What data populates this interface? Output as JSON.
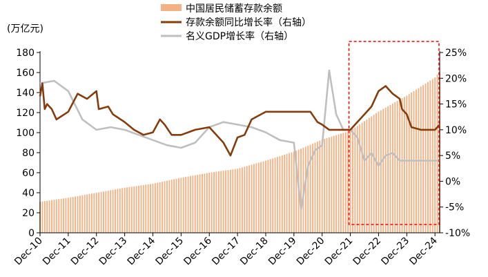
{
  "chart_data": {
    "type": "bar+line",
    "left_axis_label": "(万亿元)",
    "left_ylim": [
      0,
      180
    ],
    "left_ticks": [
      0,
      20,
      40,
      60,
      80,
      100,
      120,
      140,
      160,
      180
    ],
    "right_ylim": [
      -10,
      25
    ],
    "right_ticks": [
      "25%",
      "20%",
      "15%",
      "10%",
      "5%",
      "0%",
      "-5%",
      "-10%"
    ],
    "right_tick_values": [
      25,
      20,
      15,
      10,
      5,
      0,
      -5,
      -10
    ],
    "x_tick_labels": [
      "Dec-10",
      "Dec-11",
      "Dec-12",
      "Dec-13",
      "Dec-14",
      "Dec-15",
      "Dec-16",
      "Dec-17",
      "Dec-18",
      "Dec-19",
      "Dec-20",
      "Dec-21",
      "Dec-22",
      "Dec-23",
      "Dec-24"
    ],
    "x_start": "2010-12",
    "x_end": "2025-02",
    "colors": {
      "deposits": "#f4b183",
      "deposit_growth": "#843c0c",
      "gdp_growth": "#bfbfbf",
      "highlight_box": "#ff0000"
    },
    "legend": [
      {
        "name": "中国居民储蓄存款余额",
        "kind": "bar",
        "color": "#f4b183"
      },
      {
        "name": "存款余额同比增长率（右轴）",
        "kind": "line",
        "color": "#843c0c"
      },
      {
        "name": "名义GDP增长率（右轴）",
        "kind": "line",
        "color": "#bfbfbf"
      }
    ],
    "highlight_period": [
      "2021-12",
      "2025-02"
    ],
    "series": [
      {
        "name": "中国居民储蓄存款余额",
        "axis": "left",
        "type": "bar",
        "points": [
          [
            "2010-12",
            31
          ],
          [
            "2011-12",
            35
          ],
          [
            "2012-12",
            40
          ],
          [
            "2013-12",
            45
          ],
          [
            "2014-12",
            49
          ],
          [
            "2015-12",
            55
          ],
          [
            "2016-12",
            60
          ],
          [
            "2017-12",
            64
          ],
          [
            "2018-12",
            72
          ],
          [
            "2019-12",
            81
          ],
          [
            "2020-12",
            93
          ],
          [
            "2021-12",
            102
          ],
          [
            "2022-12",
            121
          ],
          [
            "2023-12",
            137
          ],
          [
            "2024-12",
            155
          ],
          [
            "2025-02",
            161
          ]
        ]
      },
      {
        "name": "存款余额同比增长率（右轴）",
        "axis": "right",
        "type": "line",
        "points": [
          [
            "2010-12",
            16.5
          ],
          [
            "2011-01",
            19
          ],
          [
            "2011-02",
            14
          ],
          [
            "2011-03",
            15
          ],
          [
            "2011-05",
            14
          ],
          [
            "2011-07",
            12
          ],
          [
            "2011-12",
            13.5
          ],
          [
            "2012-04",
            17
          ],
          [
            "2012-08",
            16
          ],
          [
            "2012-12",
            17.5
          ],
          [
            "2013-01",
            14
          ],
          [
            "2013-05",
            14.5
          ],
          [
            "2013-07",
            13
          ],
          [
            "2013-12",
            11.5
          ],
          [
            "2014-04",
            10
          ],
          [
            "2014-08",
            9
          ],
          [
            "2014-12",
            9.5
          ],
          [
            "2015-03",
            12
          ],
          [
            "2015-05",
            11
          ],
          [
            "2015-08",
            9
          ],
          [
            "2015-12",
            9
          ],
          [
            "2016-06",
            10
          ],
          [
            "2016-12",
            10.5
          ],
          [
            "2017-03",
            9
          ],
          [
            "2017-06",
            7.5
          ],
          [
            "2017-09",
            5
          ],
          [
            "2017-12",
            8.5
          ],
          [
            "2018-03",
            9
          ],
          [
            "2018-06",
            12
          ],
          [
            "2018-12",
            13.5
          ],
          [
            "2019-06",
            13.5
          ],
          [
            "2019-12",
            13.5
          ],
          [
            "2020-04",
            13.5
          ],
          [
            "2020-07",
            13.5
          ],
          [
            "2020-10",
            11.5
          ],
          [
            "2020-12",
            11
          ],
          [
            "2021-03",
            10
          ],
          [
            "2021-06",
            10
          ],
          [
            "2021-12",
            10
          ],
          [
            "2022-02",
            11
          ],
          [
            "2022-06",
            13
          ],
          [
            "2022-09",
            14.5
          ],
          [
            "2022-12",
            17.5
          ],
          [
            "2023-03",
            18.5
          ],
          [
            "2023-06",
            17
          ],
          [
            "2023-09",
            16
          ],
          [
            "2023-10",
            14
          ],
          [
            "2023-12",
            13
          ],
          [
            "2024-02",
            10.5
          ],
          [
            "2024-06",
            10
          ],
          [
            "2024-09",
            10
          ],
          [
            "2024-12",
            10
          ],
          [
            "2025-02",
            11
          ]
        ]
      },
      {
        "name": "名义GDP增长率（右轴）",
        "axis": "right",
        "type": "line",
        "points": [
          [
            "2010-12",
            19
          ],
          [
            "2011-06",
            19.5
          ],
          [
            "2011-12",
            17.5
          ],
          [
            "2012-06",
            12
          ],
          [
            "2012-12",
            10
          ],
          [
            "2013-06",
            10.5
          ],
          [
            "2013-12",
            10
          ],
          [
            "2014-06",
            9
          ],
          [
            "2014-12",
            8
          ],
          [
            "2015-06",
            7
          ],
          [
            "2015-12",
            6.5
          ],
          [
            "2016-06",
            7.5
          ],
          [
            "2016-12",
            10.5
          ],
          [
            "2017-06",
            11.5
          ],
          [
            "2017-12",
            11
          ],
          [
            "2018-06",
            10.5
          ],
          [
            "2018-12",
            9.5
          ],
          [
            "2019-06",
            8
          ],
          [
            "2019-12",
            7.5
          ],
          [
            "2020-03",
            -5.5
          ],
          [
            "2020-06",
            3
          ],
          [
            "2020-09",
            6
          ],
          [
            "2020-12",
            7
          ],
          [
            "2021-03",
            21.5
          ],
          [
            "2021-06",
            13
          ],
          [
            "2021-09",
            10
          ],
          [
            "2021-12",
            10
          ],
          [
            "2022-03",
            8.5
          ],
          [
            "2022-06",
            4
          ],
          [
            "2022-09",
            5.5
          ],
          [
            "2022-12",
            3
          ],
          [
            "2023-03",
            5
          ],
          [
            "2023-06",
            5.5
          ],
          [
            "2023-09",
            4
          ],
          [
            "2023-12",
            4
          ],
          [
            "2024-06",
            4
          ],
          [
            "2024-12",
            4
          ],
          [
            "2025-02",
            4
          ]
        ]
      }
    ]
  }
}
